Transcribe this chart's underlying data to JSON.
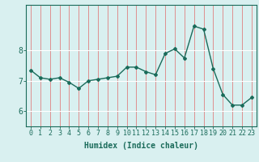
{
  "x": [
    0,
    1,
    2,
    3,
    4,
    5,
    6,
    7,
    8,
    9,
    10,
    11,
    12,
    13,
    14,
    15,
    16,
    17,
    18,
    19,
    20,
    21,
    22,
    23
  ],
  "y": [
    7.35,
    7.1,
    7.05,
    7.1,
    6.95,
    6.75,
    7.0,
    7.05,
    7.1,
    7.15,
    7.45,
    7.45,
    7.3,
    7.2,
    7.9,
    8.05,
    7.75,
    8.8,
    8.7,
    7.4,
    6.55,
    6.2,
    6.2,
    6.45
  ],
  "line_color": "#1a6b5a",
  "marker": "D",
  "marker_size": 2,
  "bg_color": "#d9f0f0",
  "grid_color": "#ffffff",
  "vgrid_color": "#e08080",
  "axis_color": "#1a6b5a",
  "xlabel": "Humidex (Indice chaleur)",
  "xlabel_fontsize": 7,
  "tick_fontsize": 6,
  "yticks": [
    6,
    7,
    8
  ],
  "ylim": [
    5.5,
    9.5
  ],
  "xlim": [
    -0.5,
    23.5
  ]
}
